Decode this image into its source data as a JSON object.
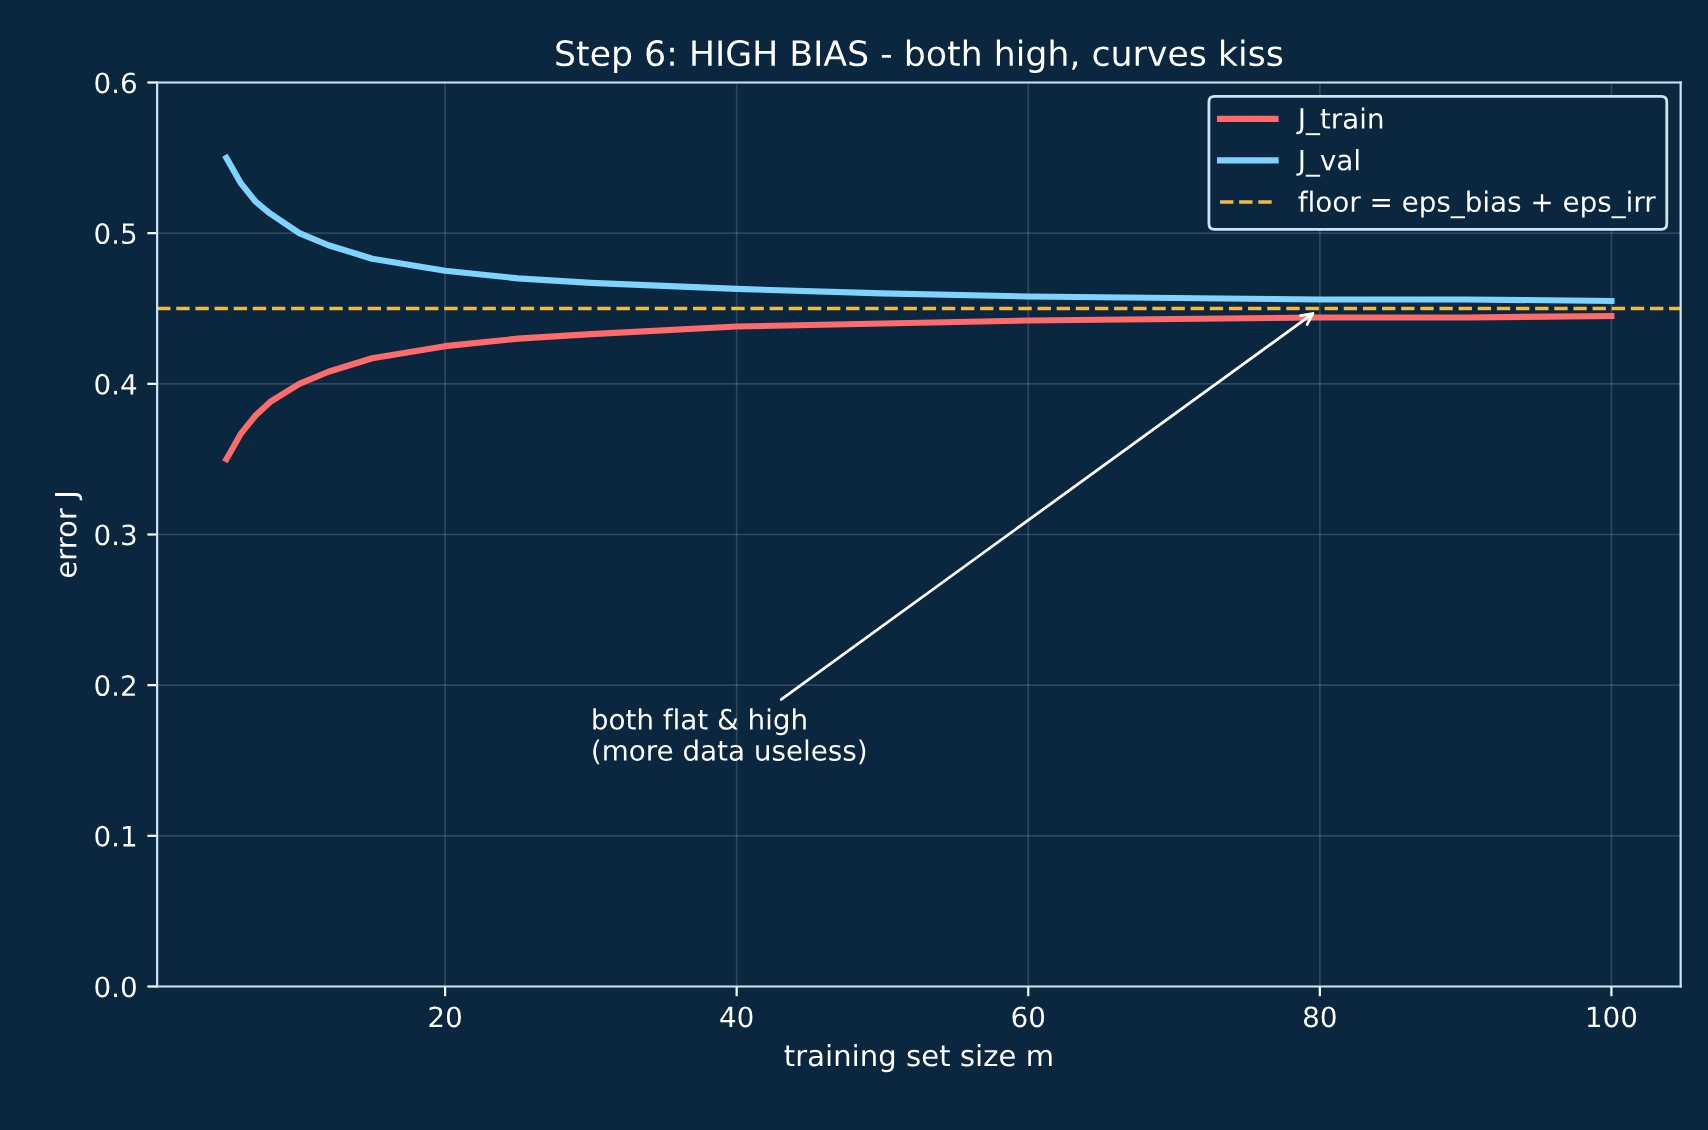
{
  "chart_data": {
    "type": "line",
    "title": "Step 6: HIGH BIAS - both high, curves kiss",
    "xlabel": "training set size m",
    "ylabel": "error J",
    "x": [
      5,
      6,
      7,
      8,
      10,
      12,
      15,
      20,
      25,
      30,
      40,
      50,
      60,
      70,
      80,
      90,
      100
    ],
    "series": [
      {
        "name": "J_train",
        "color": "#ff6b6b",
        "values": [
          0.35,
          0.367,
          0.379,
          0.388,
          0.4,
          0.408,
          0.417,
          0.425,
          0.43,
          0.433,
          0.438,
          0.44,
          0.442,
          0.443,
          0.444,
          0.444,
          0.445
        ]
      },
      {
        "name": "J_val",
        "color": "#7fd3ff",
        "values": [
          0.55,
          0.533,
          0.521,
          0.513,
          0.5,
          0.492,
          0.483,
          0.475,
          0.47,
          0.467,
          0.463,
          0.46,
          0.458,
          0.457,
          0.456,
          0.456,
          0.455
        ]
      }
    ],
    "ref_lines": [
      {
        "axis": "y",
        "value": 0.45,
        "label": "floor = eps_bias + eps_irr",
        "color": "#f5b942",
        "line_style": "dashed"
      }
    ],
    "annotations": [
      {
        "text": "both flat & high\n(more data useless)",
        "x": 80,
        "y": 0.45
      }
    ],
    "xlim": [
      0.25,
      104.75
    ],
    "xticks": [
      20,
      40,
      60,
      80,
      100
    ],
    "ylim": [
      0,
      0.6
    ],
    "yticks": [
      {
        "value": 0,
        "label": "0.0"
      },
      0.1,
      0.2,
      0.3,
      0.4,
      0.5,
      0.6
    ],
    "grid": true,
    "legend": "top right",
    "marker": "none",
    "line_style": "solid"
  }
}
